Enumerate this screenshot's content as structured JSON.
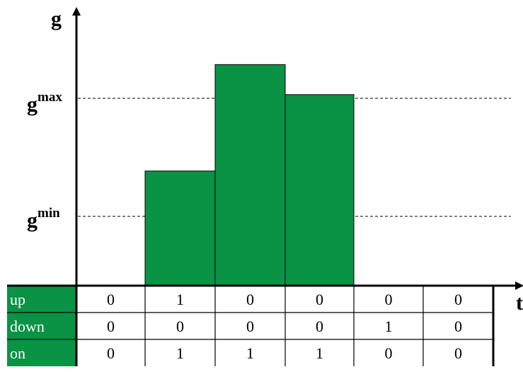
{
  "axes": {
    "y_label": "g",
    "x_label": "t"
  },
  "levels": {
    "max": {
      "base": "g",
      "sup": "max",
      "value": 0.77
    },
    "min": {
      "base": "g",
      "sup": "min",
      "value": 0.3
    }
  },
  "bars": [
    {
      "slot": 1,
      "value": 0.42
    },
    {
      "slot": 2,
      "value": 0.81
    },
    {
      "slot": 3,
      "value": 0.7
    }
  ],
  "table": {
    "rows": [
      {
        "label": "up",
        "values": [
          "0",
          "1",
          "0",
          "0",
          "0",
          "0"
        ]
      },
      {
        "label": "down",
        "values": [
          "0",
          "0",
          "0",
          "0",
          "1",
          "0"
        ]
      },
      {
        "label": "on",
        "values": [
          "0",
          "1",
          "1",
          "1",
          "0",
          "0"
        ]
      }
    ]
  },
  "colors": {
    "bar_fill": "#0a9245",
    "row_label_fill": "#0a9245",
    "row_label_text": "#ffffff",
    "ink": "#000000"
  }
}
